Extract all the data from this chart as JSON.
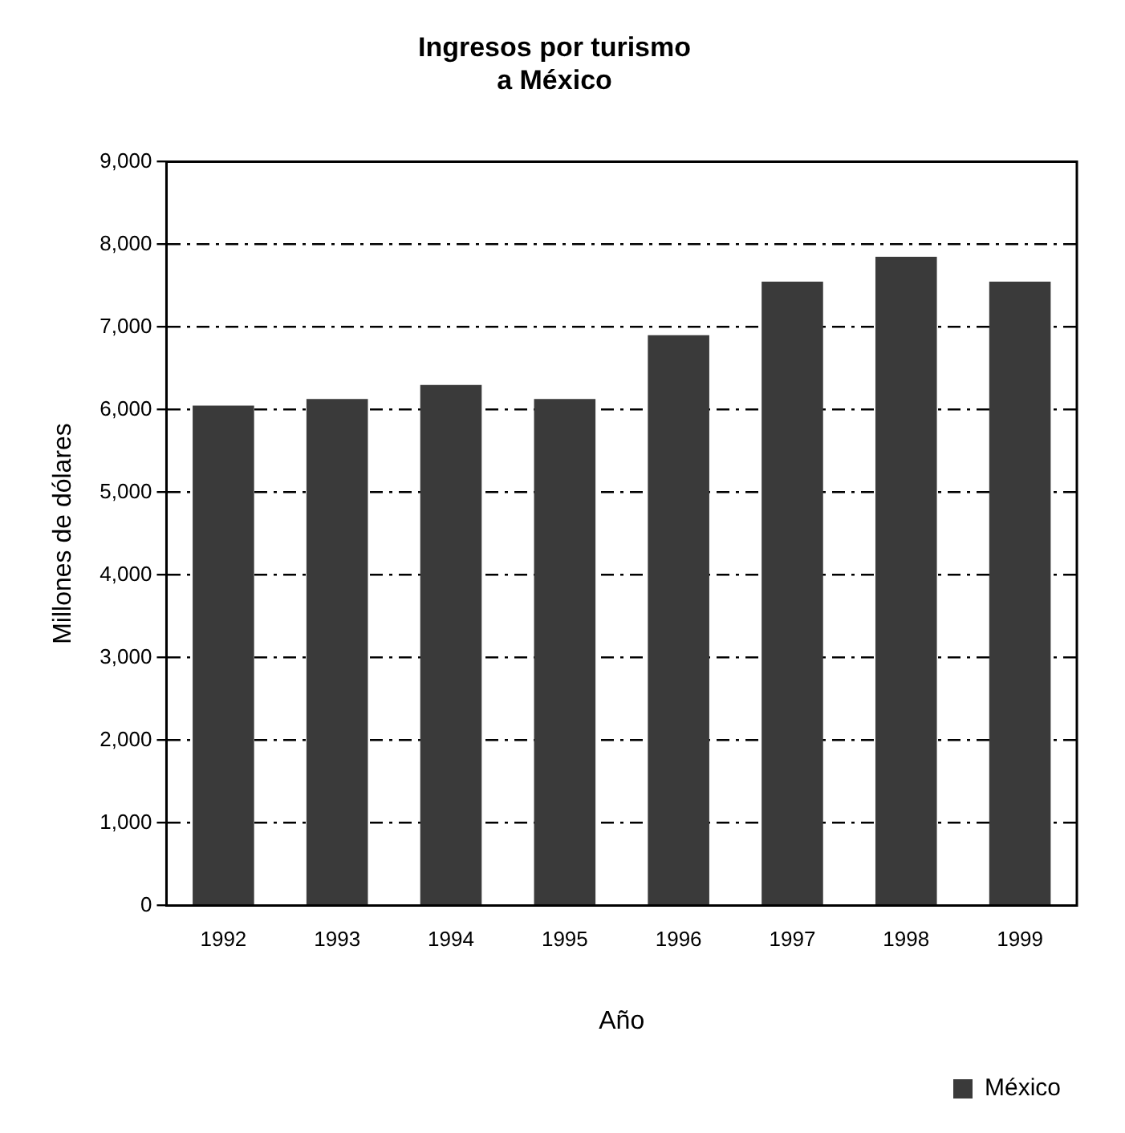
{
  "chart_data": {
    "type": "bar",
    "title": "Ingresos por turismo\na México",
    "xlabel": "Año",
    "ylabel": "Millones de dólares",
    "categories": [
      "1992",
      "1993",
      "1994",
      "1995",
      "1996",
      "1997",
      "1998",
      "1999"
    ],
    "series": [
      {
        "name": "México",
        "color": "#3a3a3a",
        "values": [
          6050,
          6130,
          6300,
          6130,
          6900,
          7550,
          7850,
          7550
        ]
      }
    ],
    "ylim": [
      0,
      9000
    ],
    "yticks": [
      {
        "value": 0,
        "label": "0"
      },
      {
        "value": 1000,
        "label": "1,000"
      },
      {
        "value": 2000,
        "label": "2,000"
      },
      {
        "value": 3000,
        "label": "3,000"
      },
      {
        "value": 4000,
        "label": "4,000"
      },
      {
        "value": 5000,
        "label": "5,000"
      },
      {
        "value": 6000,
        "label": "6,000"
      },
      {
        "value": 7000,
        "label": "7,000"
      },
      {
        "value": 8000,
        "label": "8,000"
      },
      {
        "value": 9000,
        "label": "9,000"
      }
    ],
    "grid": "y",
    "legend": "bottom right"
  }
}
